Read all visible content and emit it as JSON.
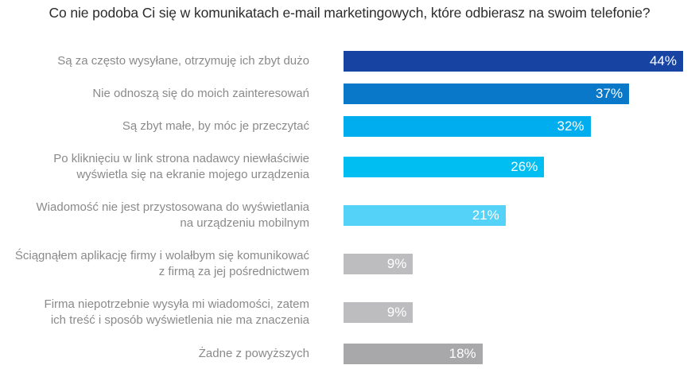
{
  "chart_data": {
    "type": "bar",
    "orientation": "horizontal",
    "title": "Co nie podoba Ci się w komunikatach e-mail marketingowych, które odbierasz na swoim telefonie?",
    "xlabel": "",
    "ylabel": "",
    "xlim": [
      0,
      44
    ],
    "grid": false,
    "legend": "none",
    "unit": "%",
    "categories": [
      [
        "Są za często wysyłane, otrzymuję ich zbyt dużo"
      ],
      [
        "Nie odnoszą się do moich zainteresowań"
      ],
      [
        "Są zbyt małe, by móc je przeczytać"
      ],
      [
        "Po kliknięciu w link strona nadawcy niewłaściwie",
        "wyświetla się na ekranie mojego urządzenia"
      ],
      [
        "Wiadomość nie jest przystosowana do wyświetlania",
        "na urządzeniu mobilnym"
      ],
      [
        "Ściągnąłem aplikację firmy i wolałbym się komunikować",
        "z firmą za jej pośrednictwem"
      ],
      [
        "Firma niepotrzebnie wysyła mi wiadomości, zatem",
        "ich treść i sposób wyświetlenia nie ma znaczenia"
      ],
      [
        "Żadne z powyższych"
      ]
    ],
    "values": [
      44,
      37,
      32,
      26,
      21,
      9,
      9,
      18
    ],
    "data_labels": [
      "44%",
      "37%",
      "32%",
      "26%",
      "21%",
      "9%",
      "9%",
      "18%"
    ],
    "colors": [
      "#1744a3",
      "#0a78c8",
      "#00aeef",
      "#00bdf2",
      "#55d2f7",
      "#bdbdbf",
      "#bdbdbf",
      "#a8a8ab"
    ]
  }
}
